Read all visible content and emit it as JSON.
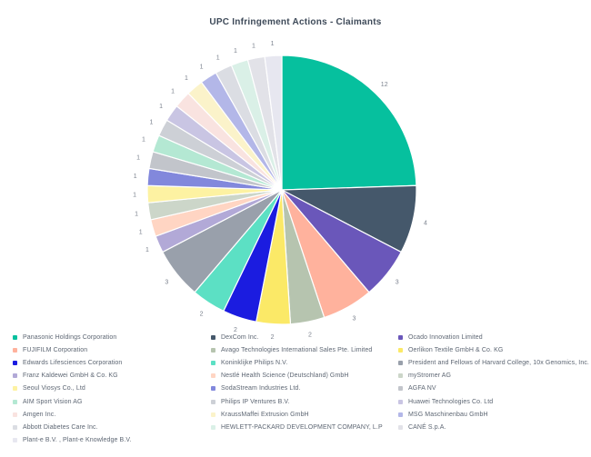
{
  "title": "UPC Infringement Actions - Claimants",
  "chart_data": {
    "type": "pie",
    "title": "UPC Infringement Actions - Claimants",
    "legend_position": "bottom",
    "slice_labels": "values",
    "total": 49,
    "slices": [
      {
        "label": "Panasonic Holdings Corporation",
        "value": 12,
        "color": "#06c09e"
      },
      {
        "label": "DexCom Inc.",
        "value": 4,
        "color": "#45586b"
      },
      {
        "label": "Ocado Innovation Limited",
        "value": 3,
        "color": "#6a57ba"
      },
      {
        "label": "FUJIFILM Corporation",
        "value": 3,
        "color": "#ffb29d"
      },
      {
        "label": "Avago Technologies International Sales Pte. Limited",
        "value": 2,
        "color": "#b6c4af"
      },
      {
        "label": "Oerlikon Textile GmbH & Co. KG",
        "value": 2,
        "color": "#fbe967"
      },
      {
        "label": "Edwards Lifesciences Corporation",
        "value": 2,
        "color": "#1b1ce0"
      },
      {
        "label": "Koninklijke Philips N.V.",
        "value": 2,
        "color": "#5ce0c4"
      },
      {
        "label": "President and Fellows of Harvard College, 10x Genomics, Inc.",
        "value": 3,
        "color": "#99a0ab"
      },
      {
        "label": "Franz Kaldewei GmbH & Co. KG",
        "value": 1,
        "color": "#b2a9d7"
      },
      {
        "label": "Nestlé Health Science (Deutschland) GmbH",
        "value": 1,
        "color": "#ffd5c3"
      },
      {
        "label": "myStromer AG",
        "value": 1,
        "color": "#ccd6c9"
      },
      {
        "label": "Seoul Viosys Co., Ltd",
        "value": 1,
        "color": "#fdf2a2"
      },
      {
        "label": "SodaStream Industries Ltd.",
        "value": 1,
        "color": "#8288dc"
      },
      {
        "label": "AGFA NV",
        "value": 1,
        "color": "#c2c5cb"
      },
      {
        "label": "AIM Sport Vision AG",
        "value": 1,
        "color": "#b4e8d3"
      },
      {
        "label": "Philips IP Ventures B.V.",
        "value": 1,
        "color": "#cdd0d6"
      },
      {
        "label": "Huawei Technologies Co. Ltd",
        "value": 1,
        "color": "#c9c5e3"
      },
      {
        "label": "Amgen Inc.",
        "value": 1,
        "color": "#f9e3e0"
      },
      {
        "label": "KraussMaffei Extrusion GmbH",
        "value": 1,
        "color": "#fbf3ca"
      },
      {
        "label": "MSG Maschinenbau GmbH",
        "value": 1,
        "color": "#b3b7e8"
      },
      {
        "label": "Abbott Diabetes Care Inc.",
        "value": 1,
        "color": "#dbdde3"
      },
      {
        "label": "HEWLETT-PACKARD DEVELOPMENT COMPANY, L.P",
        "value": 1,
        "color": "#daf0e7"
      },
      {
        "label": "CANÉ S.p.A.",
        "value": 1,
        "color": "#e2e2e8"
      },
      {
        "label": "Plant-e B.V. , Plant-e Knowledge B.V.",
        "value": 1,
        "color": "#e7e7f0"
      }
    ],
    "style": {
      "title_color": "#3e4a59",
      "value_label_color": "#7b828e",
      "legend_text_color": "#5d6673",
      "background": "#ffffff"
    }
  }
}
